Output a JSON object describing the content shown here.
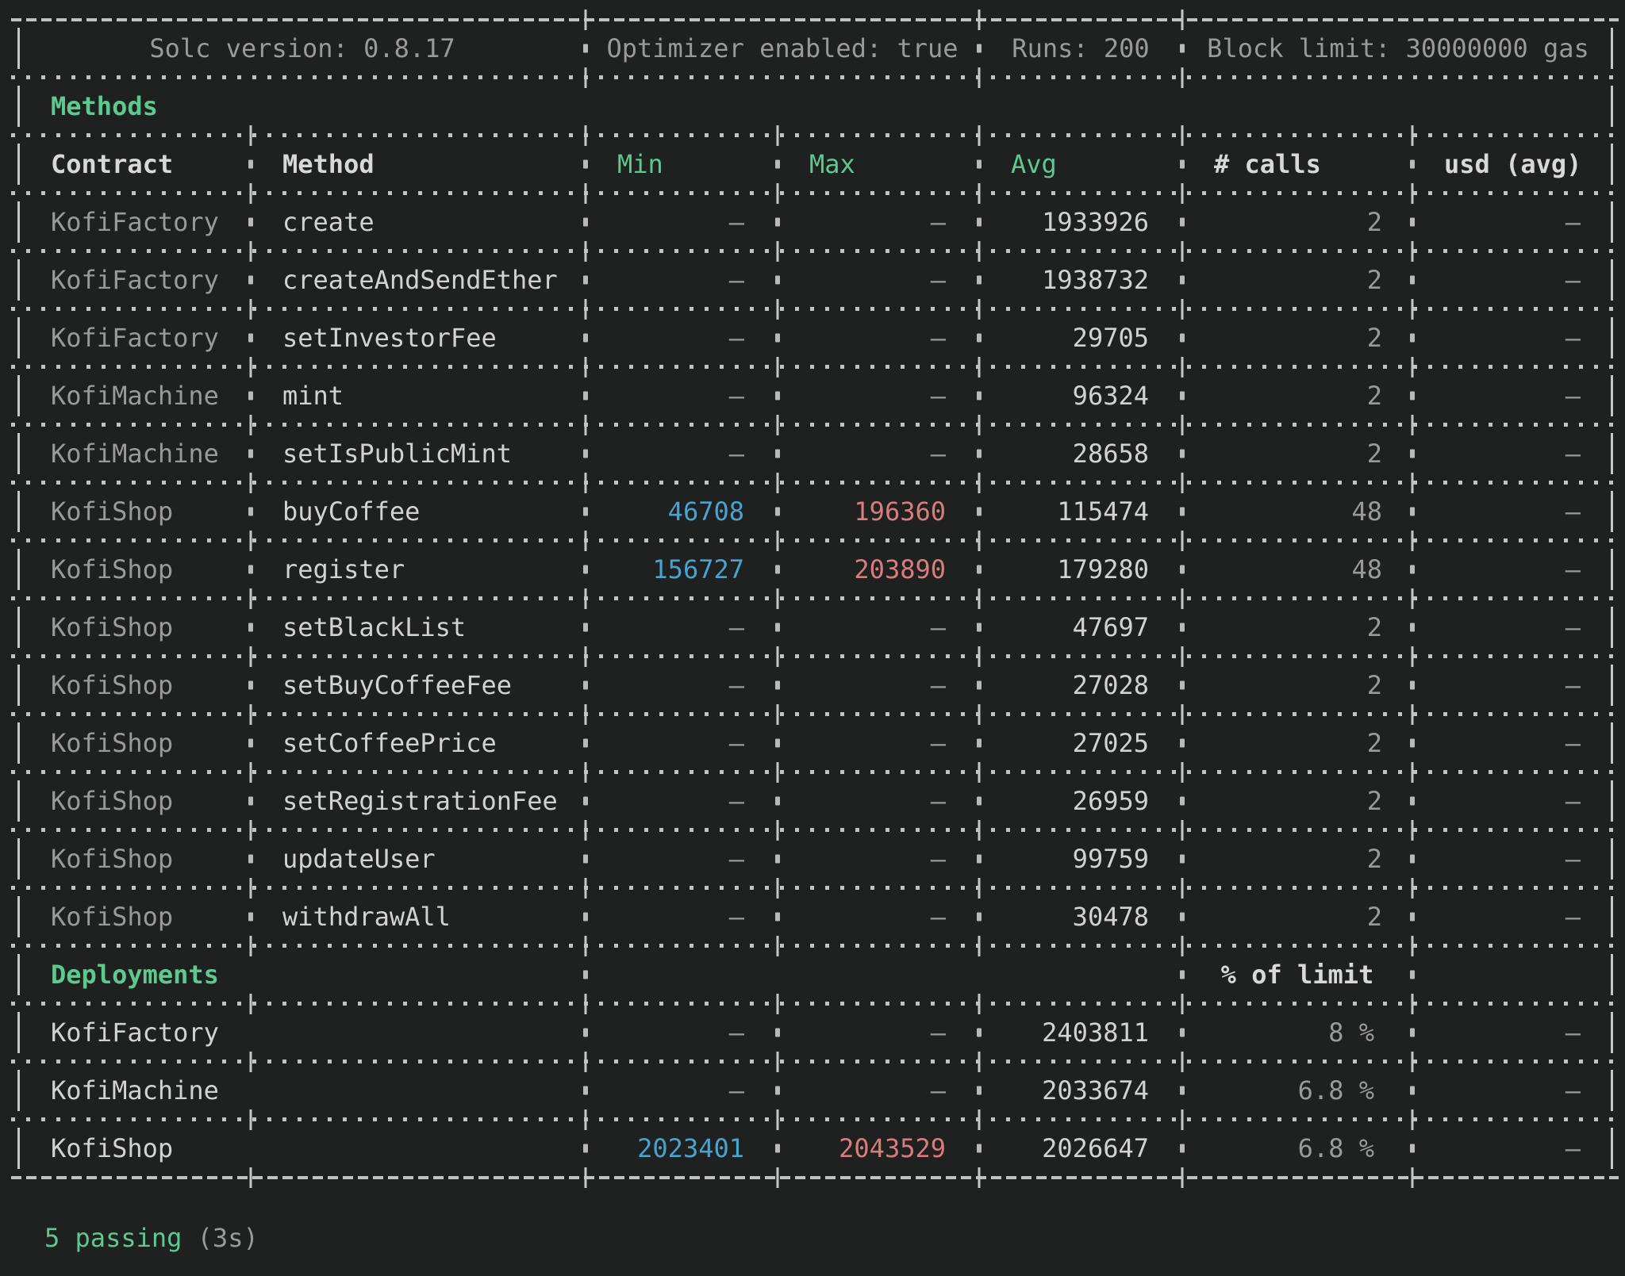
{
  "terminal": {
    "info_row": {
      "solc": "Solc version: 0.8.17",
      "optimizer": "Optimizer enabled: true",
      "runs": "Runs: 200",
      "block_limit": "Block limit: 30000000 gas"
    },
    "methods_section_label": "Methods",
    "columns": [
      "Contract",
      "Method",
      "Min",
      "Max",
      "Avg",
      "# calls",
      "usd (avg)"
    ],
    "method_rows": [
      {
        "contract": "KofiFactory",
        "method": "create",
        "min": "-",
        "max": "-",
        "avg": "1933926",
        "calls": "2",
        "usd": "-"
      },
      {
        "contract": "KofiFactory",
        "method": "createAndSendEther",
        "min": "-",
        "max": "-",
        "avg": "1938732",
        "calls": "2",
        "usd": "-"
      },
      {
        "contract": "KofiFactory",
        "method": "setInvestorFee",
        "min": "-",
        "max": "-",
        "avg": "29705",
        "calls": "2",
        "usd": "-"
      },
      {
        "contract": "KofiMachine",
        "method": "mint",
        "min": "-",
        "max": "-",
        "avg": "96324",
        "calls": "2",
        "usd": "-"
      },
      {
        "contract": "KofiMachine",
        "method": "setIsPublicMint",
        "min": "-",
        "max": "-",
        "avg": "28658",
        "calls": "2",
        "usd": "-"
      },
      {
        "contract": "KofiShop",
        "method": "buyCoffee",
        "min": "46708",
        "max": "196360",
        "avg": "115474",
        "calls": "48",
        "usd": "-"
      },
      {
        "contract": "KofiShop",
        "method": "register",
        "min": "156727",
        "max": "203890",
        "avg": "179280",
        "calls": "48",
        "usd": "-"
      },
      {
        "contract": "KofiShop",
        "method": "setBlackList",
        "min": "-",
        "max": "-",
        "avg": "47697",
        "calls": "2",
        "usd": "-"
      },
      {
        "contract": "KofiShop",
        "method": "setBuyCoffeeFee",
        "min": "-",
        "max": "-",
        "avg": "27028",
        "calls": "2",
        "usd": "-"
      },
      {
        "contract": "KofiShop",
        "method": "setCoffeePrice",
        "min": "-",
        "max": "-",
        "avg": "27025",
        "calls": "2",
        "usd": "-"
      },
      {
        "contract": "KofiShop",
        "method": "setRegistrationFee",
        "min": "-",
        "max": "-",
        "avg": "26959",
        "calls": "2",
        "usd": "-"
      },
      {
        "contract": "KofiShop",
        "method": "updateUser",
        "min": "-",
        "max": "-",
        "avg": "99759",
        "calls": "2",
        "usd": "-"
      },
      {
        "contract": "KofiShop",
        "method": "withdrawAll",
        "min": "-",
        "max": "-",
        "avg": "30478",
        "calls": "2",
        "usd": "-"
      }
    ],
    "deployments_section_label": "Deployments",
    "deployments_limit_label": "% of limit",
    "deployment_rows": [
      {
        "contract": "KofiFactory",
        "min": "-",
        "max": "-",
        "avg": "2403811",
        "pct": "8 %",
        "usd": "-"
      },
      {
        "contract": "KofiMachine",
        "min": "-",
        "max": "-",
        "avg": "2033674",
        "pct": "6.8 %",
        "usd": "-"
      },
      {
        "contract": "KofiShop",
        "min": "2023401",
        "max": "2043529",
        "avg": "2026647",
        "pct": "6.8 %",
        "usd": "-"
      }
    ],
    "summary": {
      "passing": "5 passing",
      "duration": "(3s)"
    },
    "colors": {
      "background": "#1f2020",
      "green": "#5dc98c",
      "blue": "#4aa2cf",
      "red": "#d97c7c",
      "dim_text": "#9a9a9a",
      "bright_text": "#d2d2d2",
      "border": "#c6c6c6"
    }
  }
}
